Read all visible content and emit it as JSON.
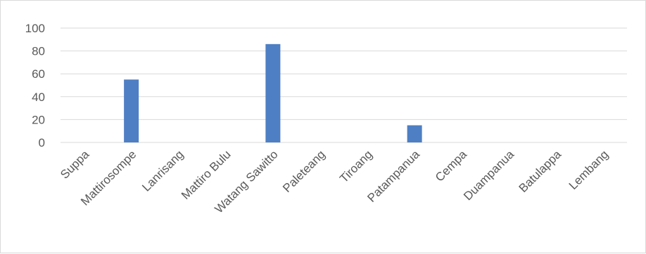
{
  "chart_data": {
    "type": "bar",
    "title": "",
    "xlabel": "",
    "ylabel": "",
    "categories": [
      "Suppa",
      "Mattirosompe",
      "Lanrisang",
      "Mattiro Bulu",
      "Watang Sawitto",
      "Paleteang",
      "Tiroang",
      "Patampanua",
      "Cempa",
      "Duampanua",
      "Batulappa",
      "Lembang"
    ],
    "values": [
      0,
      55,
      0,
      0,
      86,
      0,
      0,
      15,
      0,
      0,
      0,
      0
    ],
    "ylim": [
      0,
      100
    ],
    "yticks": [
      0,
      20,
      40,
      60,
      80,
      100
    ],
    "grid": true,
    "legend": "none",
    "bar_color": "#4e7fc4",
    "grid_color": "#d9d9d9"
  }
}
